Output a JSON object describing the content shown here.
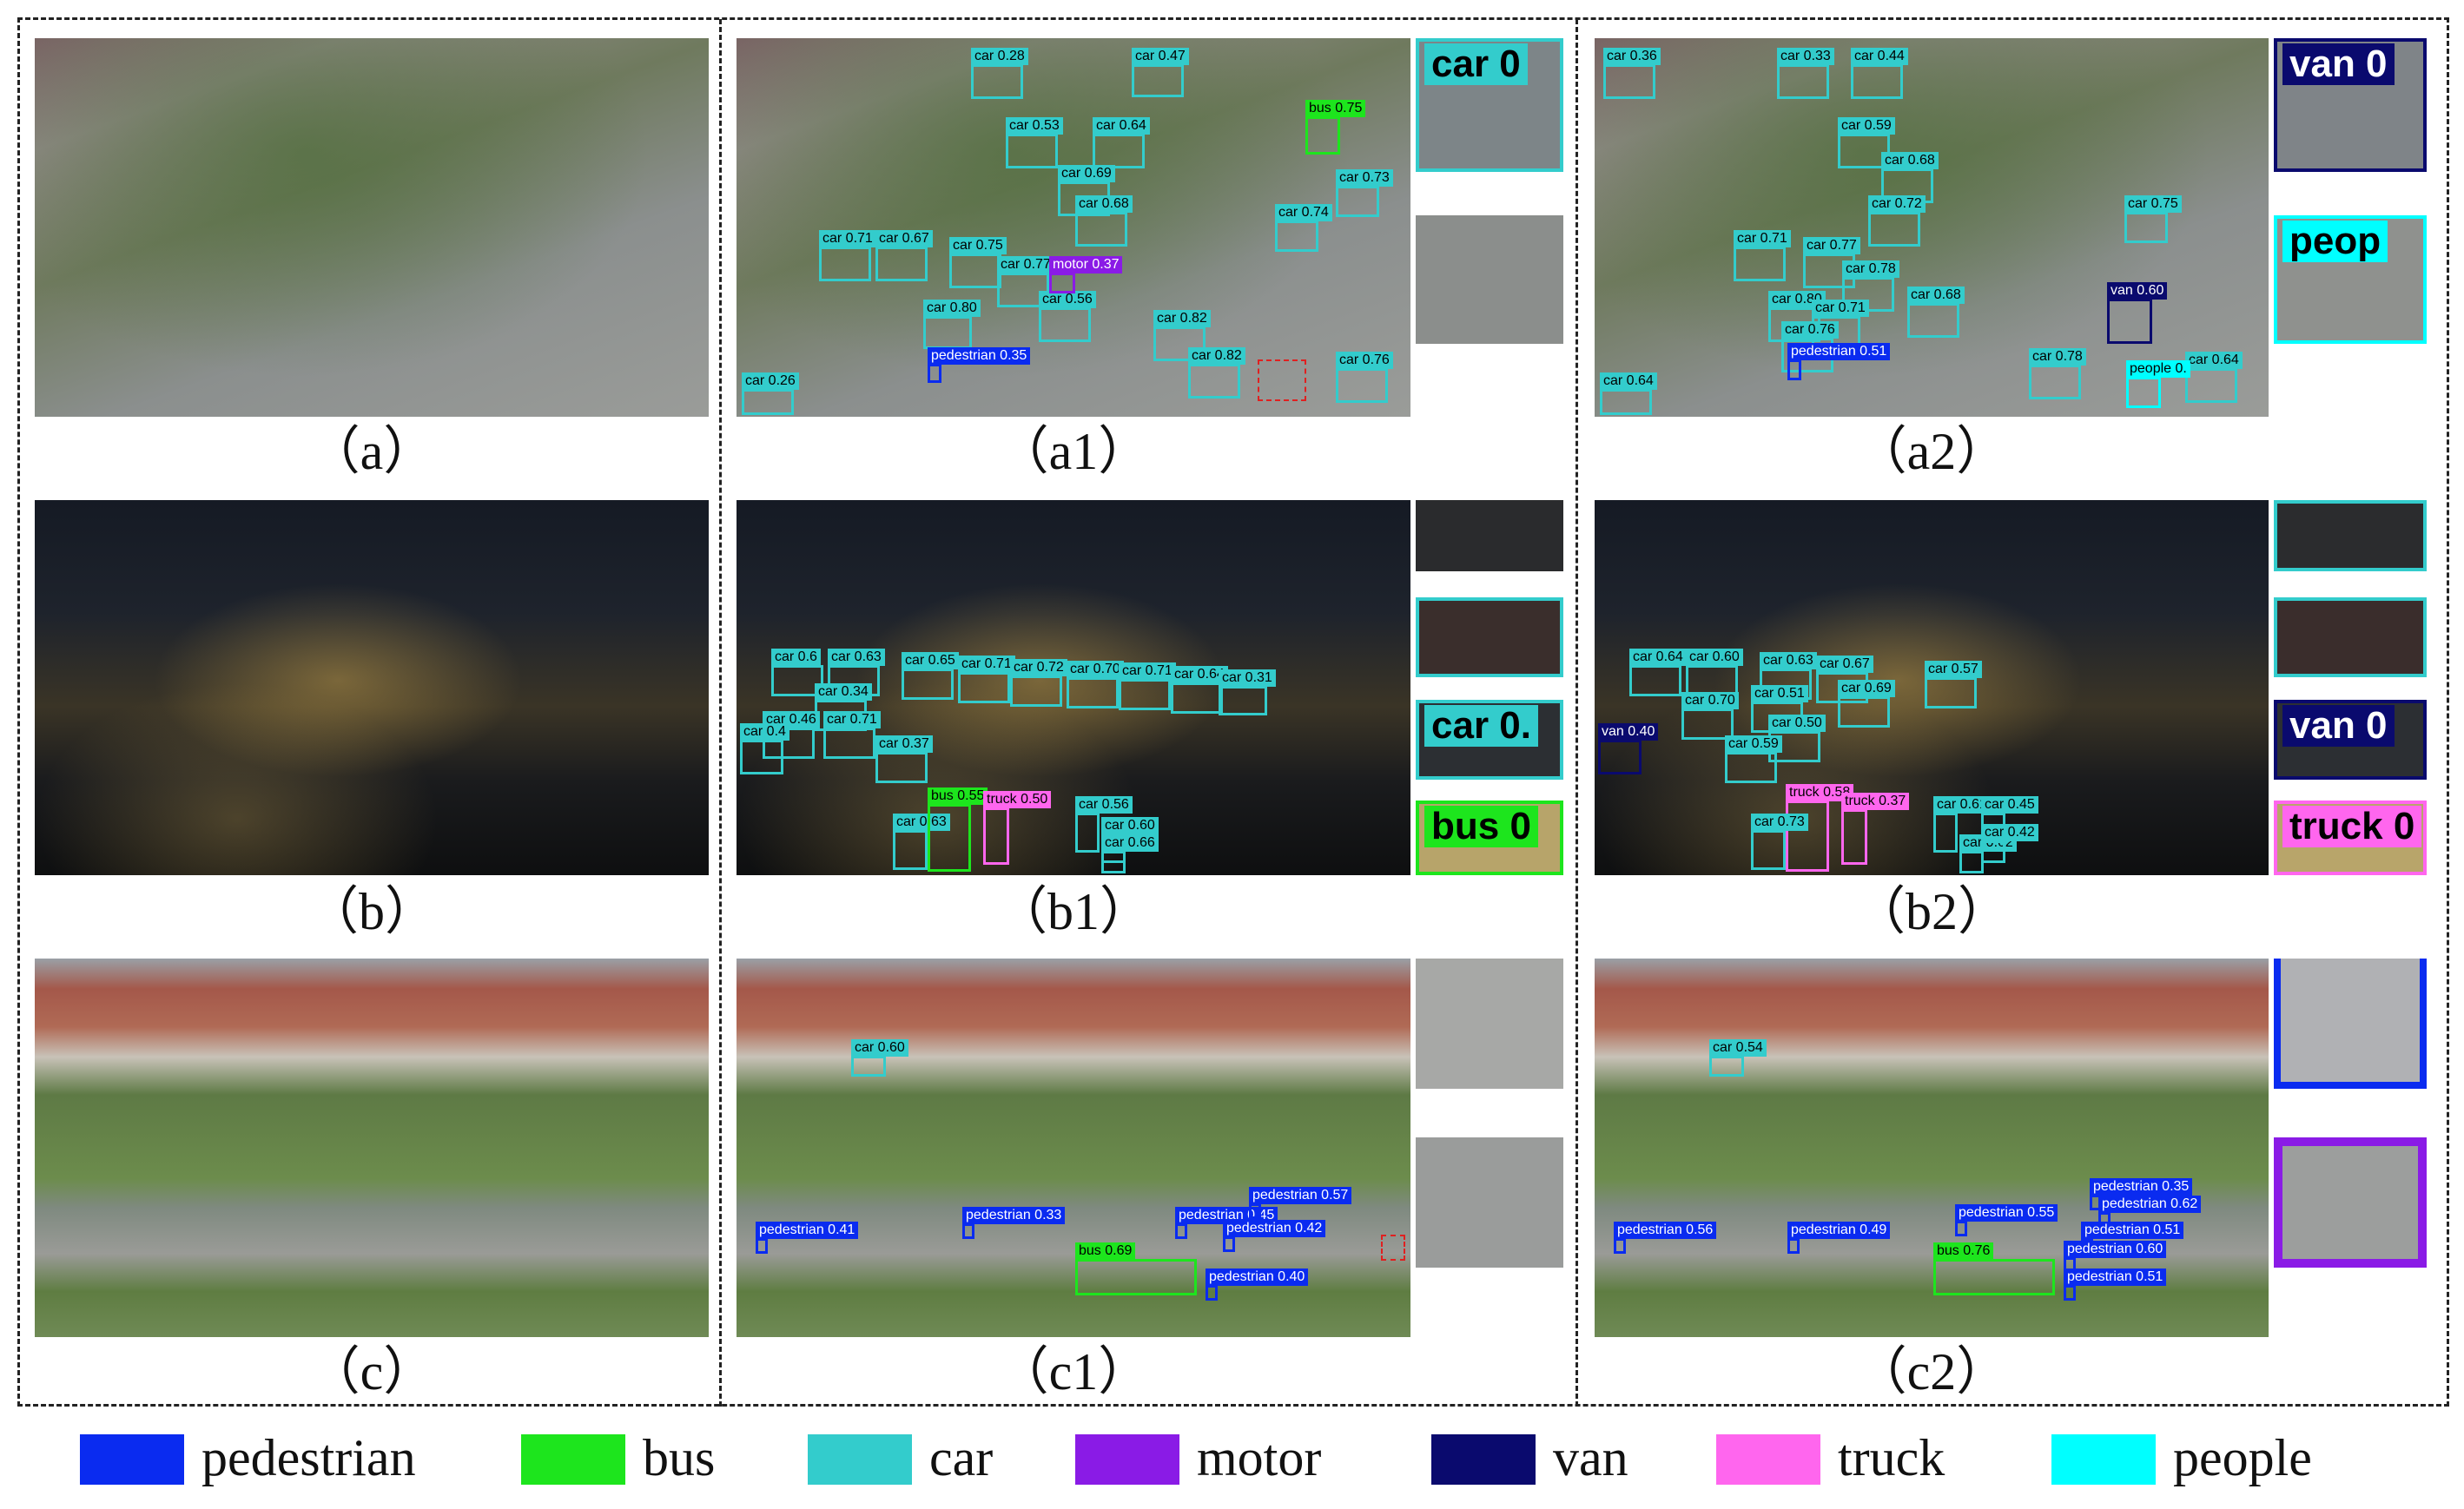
{
  "colors": {
    "pedestrian": "#0a2bf0",
    "bus": "#1de51d",
    "car": "#33cccc",
    "motor": "#8a1be6",
    "van": "#0a0a6e",
    "truck": "#ff66ee",
    "people": "#00ffff"
  },
  "captions": {
    "a": "（a）",
    "a1": "（a1）",
    "a2": "（a2）",
    "b": "（b）",
    "b1": "（b1）",
    "b2": "（b2）",
    "c": "（c）",
    "c1": "（c1）",
    "c2": "（c2）"
  },
  "legend": [
    {
      "label": "pedestrian",
      "color": "#0a2bf0"
    },
    {
      "label": "bus",
      "color": "#1de51d"
    },
    {
      "label": "car",
      "color": "#33cccc"
    },
    {
      "label": "motor",
      "color": "#8a1be6"
    },
    {
      "label": "van",
      "color": "#0a0a6e"
    },
    {
      "label": "truck",
      "color": "#ff66ee"
    },
    {
      "label": "people",
      "color": "#00ffff"
    }
  ],
  "labels": {
    "a1": [
      "car 0.28",
      "car 0.47",
      "car 0.53",
      "car 0.64",
      "car 0.69",
      "car 0.68",
      "car 0.71",
      "car 0.67",
      "car 0.75",
      "car 0.77",
      "car 0.80",
      "car 0.56",
      "car 0.82",
      "car 0.82",
      "car 0.76",
      "car 0.74",
      "car 0.73",
      "bus 0.75",
      "motor 0.37",
      "pedestrian 0.35",
      "car 0.26"
    ],
    "a2": [
      "car 0.36",
      "car 0.33",
      "car 0.44",
      "car 0.59",
      "car 0.68",
      "car 0.72",
      "car 0.71",
      "car 0.77",
      "car 0.78",
      "car 0.80",
      "car 0.71",
      "car 0.76",
      "car 0.68",
      "car 0.75",
      "car 0.78",
      "car 0.64",
      "van 0.60",
      "pedestrian 0.51",
      "people 0.",
      "car 0.64"
    ],
    "b1": [
      "car 0.6",
      "car 0.63",
      "car 0.65",
      "car 0.71",
      "car 0.72",
      "car 0.70",
      "car 0.71",
      "car 0.64",
      "car 0.31",
      "car 0.34",
      "car 0.46",
      "car 0.71",
      "car 0.37",
      "car 0.4",
      "car 0.63",
      "bus 0.55",
      "truck 0.50",
      "car 0.56",
      "car 0.60",
      "car 0.66"
    ],
    "b2": [
      "car 0.64",
      "car 0.60",
      "car 0.63",
      "car 0.67",
      "car 0.57",
      "car 0.69",
      "car 0.70",
      "car 0.51",
      "car 0.50",
      "car 0.59",
      "van 0.40",
      "truck 0.58",
      "truck 0.37",
      "car 0.61",
      "car 0.62",
      "car 0.73",
      "car 0.45",
      "car 0.42"
    ],
    "c1": [
      "car 0.60",
      "pedestrian 0.33",
      "pedestrian 0.41",
      "pedestrian 0.45",
      "pedestrian 0.57",
      "pedestrian 0.42",
      "bus 0.69",
      "pedestrian 0.40"
    ],
    "c2": [
      "car 0.54",
      "pedestrian 0.35",
      "pedestrian 0.62",
      "pedestrian 0.56",
      "pedestrian 0.49",
      "pedestrian 0.55",
      "pedestrian 0.51",
      "pedestrian 0.60",
      "bus 0.76",
      "pedestrian 0.51"
    ]
  },
  "crops": {
    "a1_top": "car 0",
    "a2_top": "van 0",
    "a2_bottom": "peop",
    "b1_third": "car 0.",
    "b1_fourth": "bus 0",
    "b2_third": "van 0",
    "b2_fourth": "truck 0"
  }
}
